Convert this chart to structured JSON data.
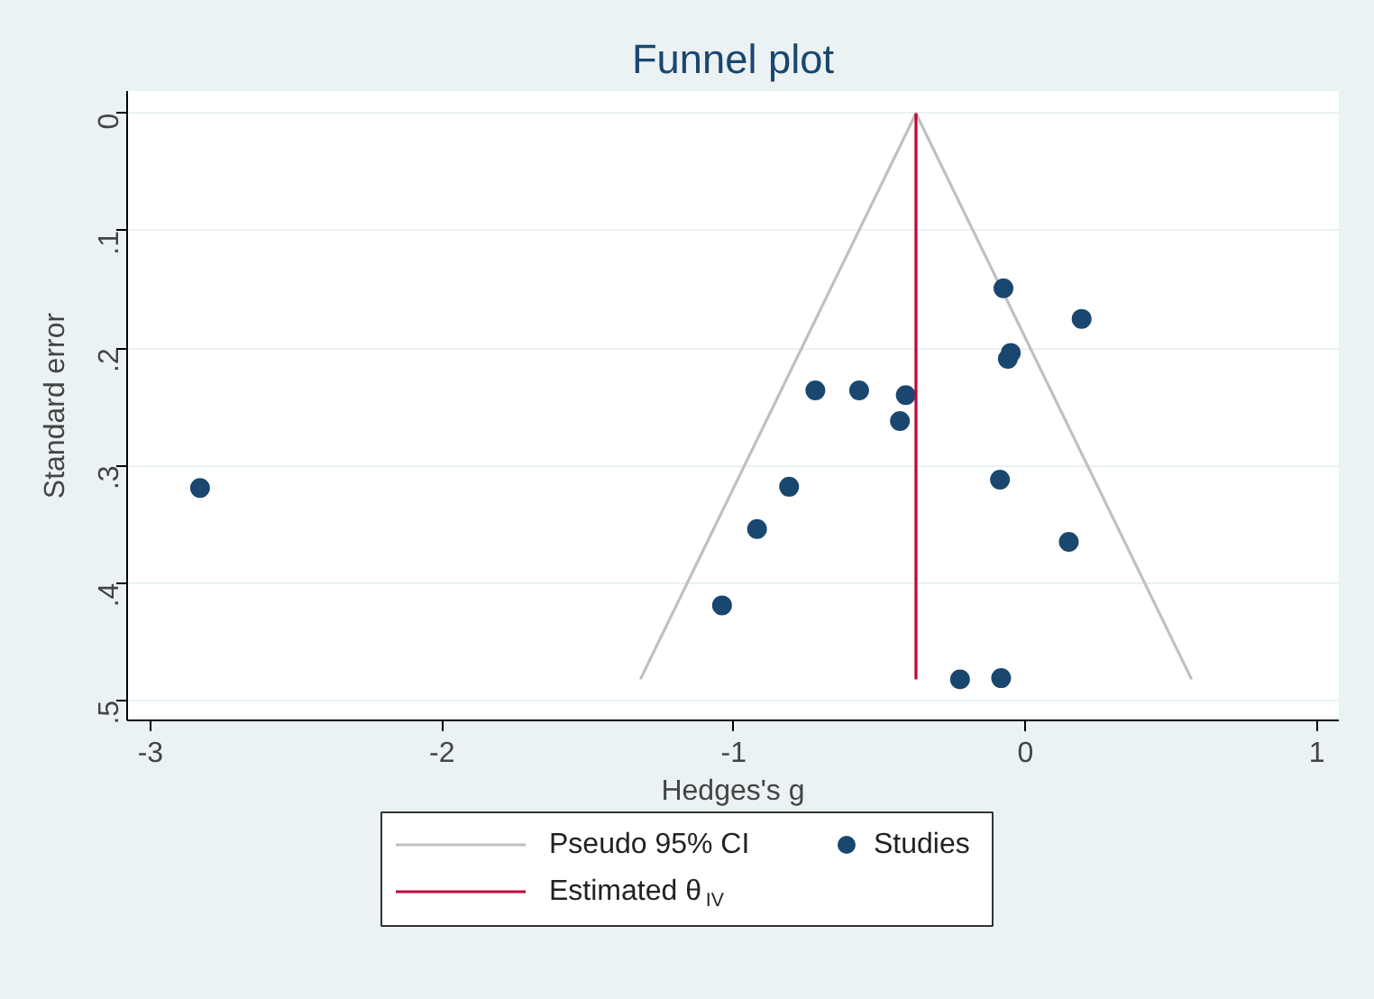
{
  "chart_data": {
    "type": "scatter",
    "title": "Funnel plot",
    "xlabel": "Hedges's g",
    "ylabel": "Standard error",
    "xlim": [
      -3.08,
      1.075
    ],
    "xticks": [
      -3,
      -2,
      -1,
      0,
      1
    ],
    "ylim": [
      0.517,
      -0.019
    ],
    "yticks": [
      0,
      {
        "value": 0.1,
        "label": ".1"
      },
      {
        "value": 0.2,
        "label": ".2"
      },
      {
        "value": 0.3,
        "label": ".3"
      },
      {
        "value": 0.4,
        "label": ".4"
      },
      {
        "value": 0.5,
        "label": ".5"
      }
    ],
    "grid": "y",
    "legend": "bottom",
    "series": [
      {
        "type": "line",
        "name": "Pseudo 95% CI",
        "color": "#c0c0c0",
        "x": [
          -1.32,
          -0.375,
          0.57
        ],
        "values": [
          0.482,
          0,
          0.482
        ]
      },
      {
        "name": "Studies",
        "marker": "circle",
        "color": "#1a476f",
        "x": [
          -0.075,
          0.193,
          -0.05,
          -0.06,
          -0.72,
          -0.57,
          -0.41,
          -0.43,
          -0.81,
          -0.087,
          -0.92,
          0.149,
          -1.04,
          -0.224,
          -0.083,
          -2.83
        ],
        "values": [
          0.149,
          0.175,
          0.204,
          0.209,
          0.236,
          0.236,
          0.24,
          0.262,
          0.318,
          0.312,
          0.354,
          0.365,
          0.419,
          0.482,
          0.481,
          0.319
        ]
      },
      {
        "type": "line",
        "name": "Estimated θ$_{IV}$",
        "color": "#c10534",
        "x": [
          -0.375,
          -0.375
        ],
        "values": [
          0,
          0.482
        ]
      }
    ]
  }
}
